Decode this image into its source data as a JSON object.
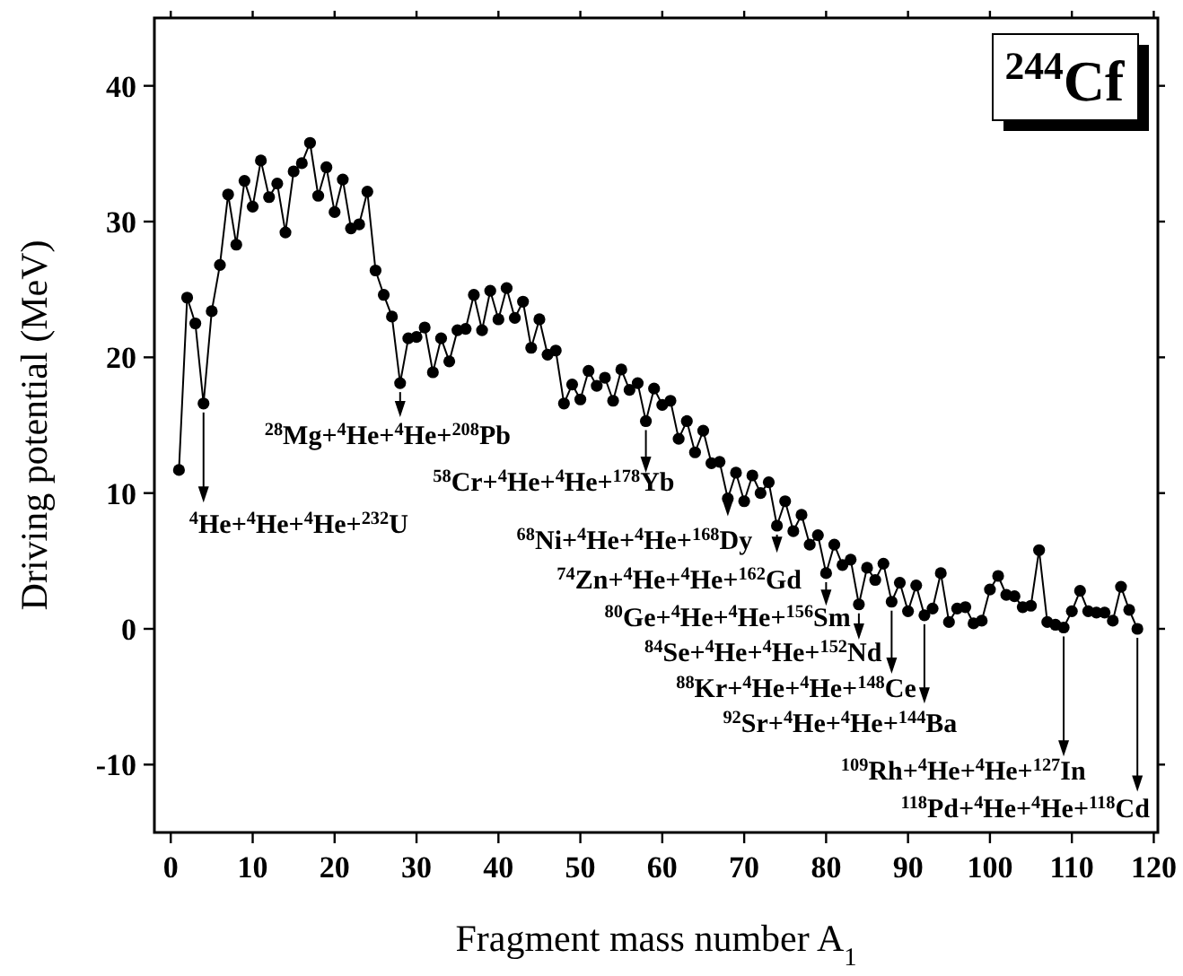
{
  "chart_data": {
    "type": "line",
    "title": "$^{244}$Cf",
    "xlabel": "Fragment mass number A$_{1}$",
    "ylabel": "Driving potential (MeV)",
    "xlim": [
      -2,
      120.5
    ],
    "ylim": [
      -15,
      45
    ],
    "xticks": [
      0,
      10,
      20,
      30,
      40,
      50,
      60,
      70,
      80,
      90,
      100,
      110,
      120
    ],
    "yticks": [
      -10,
      0,
      10,
      20,
      30,
      40
    ],
    "marker": "circle",
    "line_style": "solid",
    "series": [
      {
        "color": "#000000",
        "x": [
          1,
          2,
          3,
          4,
          5,
          6,
          7,
          8,
          9,
          10,
          11,
          12,
          13,
          14,
          15,
          16,
          17,
          18,
          19,
          20,
          21,
          22,
          23,
          24,
          25,
          26,
          27,
          28,
          29,
          30,
          31,
          32,
          33,
          34,
          35,
          36,
          37,
          38,
          39,
          40,
          41,
          42,
          43,
          44,
          45,
          46,
          47,
          48,
          49,
          50,
          51,
          52,
          53,
          54,
          55,
          56,
          57,
          58,
          59,
          60,
          61,
          62,
          63,
          64,
          65,
          66,
          67,
          68,
          69,
          70,
          71,
          72,
          73,
          74,
          75,
          76,
          77,
          78,
          79,
          80,
          81,
          82,
          83,
          84,
          85,
          86,
          87,
          88,
          89,
          90,
          91,
          92,
          93,
          94,
          95,
          96,
          97,
          98,
          99,
          100,
          101,
          102,
          103,
          104,
          105,
          106,
          107,
          108,
          109,
          110,
          111,
          112,
          113,
          114,
          115,
          116,
          117,
          118
        ],
        "values": [
          11.7,
          24.4,
          22.5,
          16.6,
          23.4,
          26.8,
          32.0,
          28.3,
          33.0,
          31.1,
          34.5,
          31.8,
          32.8,
          29.2,
          33.7,
          34.3,
          35.8,
          31.9,
          34.0,
          30.7,
          33.1,
          29.5,
          29.8,
          32.2,
          26.4,
          24.6,
          23.0,
          18.1,
          21.4,
          21.5,
          22.2,
          18.9,
          21.4,
          19.7,
          22.0,
          22.1,
          24.6,
          22.0,
          24.9,
          22.8,
          25.1,
          22.9,
          24.1,
          20.7,
          22.8,
          20.2,
          20.5,
          16.6,
          18.0,
          16.9,
          19.0,
          17.9,
          18.5,
          16.8,
          19.1,
          17.6,
          18.1,
          15.3,
          17.7,
          16.5,
          16.8,
          14.0,
          15.3,
          13.0,
          14.6,
          12.2,
          12.3,
          9.6,
          11.5,
          9.4,
          11.3,
          10.0,
          10.8,
          7.6,
          9.4,
          7.2,
          8.4,
          6.2,
          6.9,
          4.1,
          6.2,
          4.7,
          5.1,
          1.8,
          4.5,
          3.6,
          4.8,
          2.0,
          3.4,
          1.3,
          3.2,
          1.0,
          1.5,
          4.1,
          0.5,
          1.5,
          1.6,
          0.4,
          0.6,
          2.9,
          3.9,
          2.5,
          2.4,
          1.6,
          1.7,
          5.8,
          0.5,
          0.3,
          0.1,
          1.3,
          2.8,
          1.3,
          1.2,
          1.2,
          0.6,
          3.1,
          1.4,
          0.0
        ]
      }
    ],
    "annotations": [
      {
        "text": "$^{4}$He+$^{4}$He+$^{4}$He+$^{232}$U",
        "x": 4,
        "y": 16.6
      },
      {
        "text": "$^{28}$Mg+$^{4}$He+$^{4}$He+$^{208}$Pb",
        "x": 28,
        "y": 18.1
      },
      {
        "text": "$^{58}$Cr+$^{4}$He+$^{4}$He+$^{178}$Yb",
        "x": 58,
        "y": 15.3
      },
      {
        "text": "$^{68}$Ni+$^{4}$He+$^{4}$He+$^{168}$Dy",
        "x": 68,
        "y": 9.6
      },
      {
        "text": "$^{74}$Zn+$^{4}$He+$^{4}$He+$^{162}$Gd",
        "x": 74,
        "y": 7.6
      },
      {
        "text": "$^{80}$Ge+$^{4}$He+$^{4}$He+$^{156}$Sm",
        "x": 80,
        "y": 4.1
      },
      {
        "text": "$^{84}$Se+$^{4}$He+$^{4}$He+$^{152}$Nd",
        "x": 84,
        "y": 1.8
      },
      {
        "text": "$^{88}$Kr+$^{4}$He+$^{4}$He+$^{148}$Ce",
        "x": 88,
        "y": 2.0
      },
      {
        "text": "$^{92}$Sr+$^{4}$He+$^{4}$He+$^{144}$Ba",
        "x": 92,
        "y": 1.0
      },
      {
        "text": "$^{109}$Rh+$^{4}$He+$^{4}$He+$^{127}$In",
        "x": 109,
        "y": 0.1
      },
      {
        "text": "$^{118}$Pd+$^{4}$He+$^{4}$He+$^{118}$Cd",
        "x": 118,
        "y": 0.0
      }
    ]
  }
}
